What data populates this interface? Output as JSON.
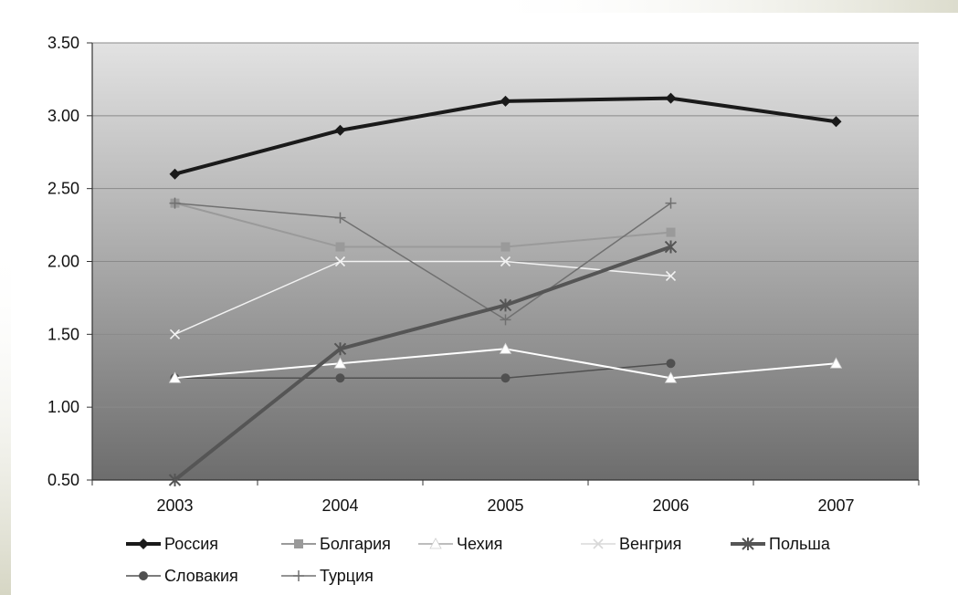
{
  "chart_data": {
    "type": "line",
    "title": "",
    "xlabel": "",
    "ylabel": "",
    "categories": [
      "2003",
      "2004",
      "2005",
      "2006",
      "2007"
    ],
    "ylim": [
      0.5,
      3.5
    ],
    "yticks": [
      "0.50",
      "1.00",
      "1.50",
      "2.00",
      "2.50",
      "3.00",
      "3.50"
    ],
    "grid": "horizontal",
    "legend_position": "bottom",
    "series": [
      {
        "name": "Россия",
        "values": [
          2.6,
          2.9,
          3.1,
          3.12,
          2.96
        ],
        "color": "#1a1a1a",
        "marker": "diamond"
      },
      {
        "name": "Болгария",
        "values": [
          2.4,
          2.1,
          2.1,
          2.2,
          null
        ],
        "color": "#9a9a9a",
        "marker": "square"
      },
      {
        "name": "Чехия",
        "values": [
          1.2,
          1.3,
          1.4,
          1.2,
          1.3
        ],
        "color": "#ffffff",
        "marker": "triangle"
      },
      {
        "name": "Венгрия",
        "values": [
          1.5,
          2.0,
          2.0,
          1.9,
          null
        ],
        "color": "#f2f2f2",
        "marker": "x"
      },
      {
        "name": "Польша",
        "values": [
          0.5,
          1.4,
          1.7,
          2.1,
          null
        ],
        "color": "#555555",
        "marker": "star"
      },
      {
        "name": "Словакия",
        "values": [
          1.2,
          1.2,
          1.2,
          1.3,
          null
        ],
        "color": "#505050",
        "marker": "circle"
      },
      {
        "name": "Турция",
        "values": [
          2.4,
          2.3,
          1.6,
          2.4,
          null
        ],
        "color": "#707070",
        "marker": "plus"
      }
    ]
  }
}
